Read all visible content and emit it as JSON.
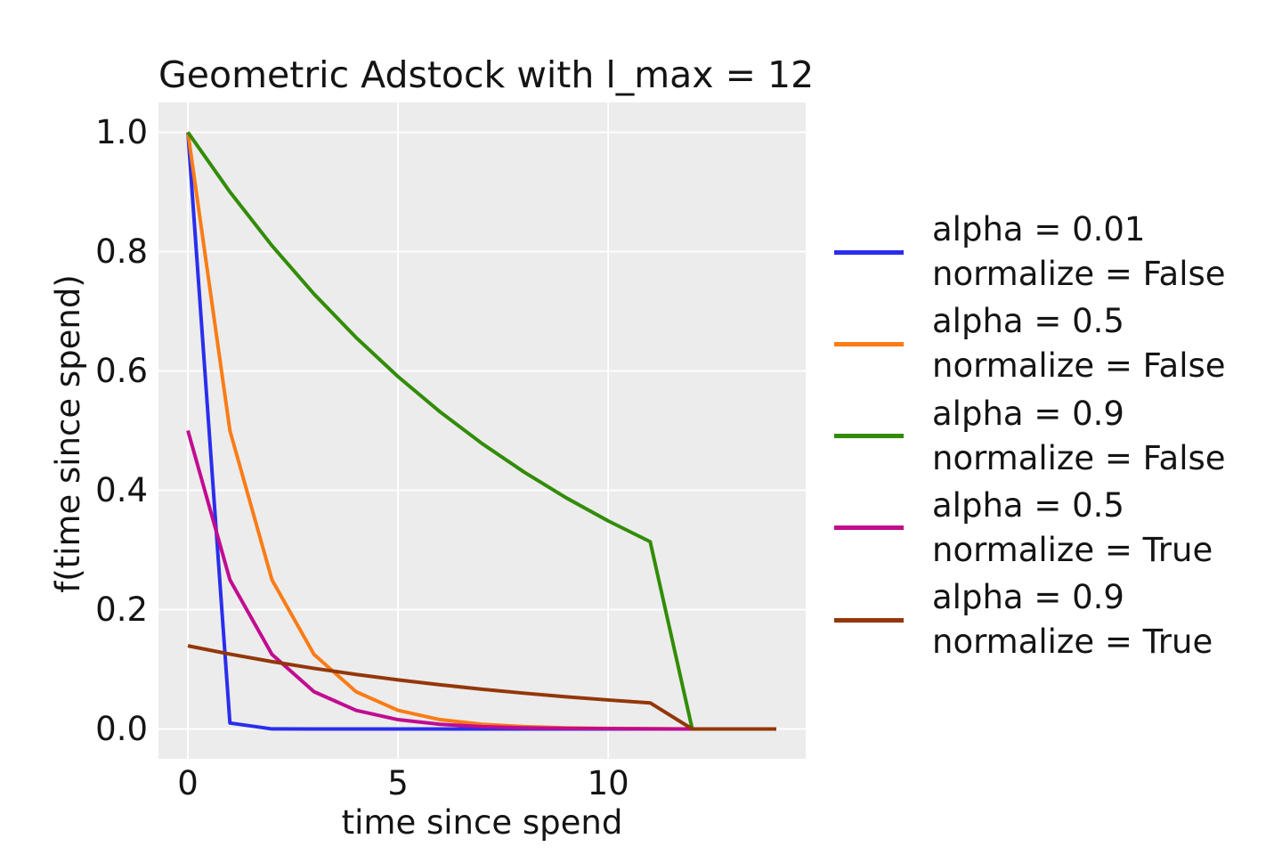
{
  "chart_data": {
    "type": "line",
    "title": "Geometric Adstock with l_max = 12",
    "xlabel": "time since spend",
    "ylabel": "f(time since spend)",
    "grid": true,
    "legend_position": "right of axes, no frame",
    "plot_bg_color": "#ececec",
    "grid_color": "#ffffff",
    "text_color": "#141414",
    "xlim": [
      -0.7,
      14.7
    ],
    "ylim": [
      -0.05,
      1.05
    ],
    "xticks": [
      {
        "v": 0,
        "label": "0"
      },
      {
        "v": 5,
        "label": "5"
      },
      {
        "v": 10,
        "label": "10"
      }
    ],
    "yticks": [
      {
        "v": 0.0,
        "label": "0.0"
      },
      {
        "v": 0.2,
        "label": "0.2"
      },
      {
        "v": 0.4,
        "label": "0.4"
      },
      {
        "v": 0.6,
        "label": "0.6"
      },
      {
        "v": 0.8,
        "label": "0.8"
      },
      {
        "v": 1.0,
        "label": "1.0"
      }
    ],
    "x": [
      0,
      1,
      2,
      3,
      4,
      5,
      6,
      7,
      8,
      9,
      10,
      11,
      12,
      13,
      14
    ],
    "series": [
      {
        "name": "alpha = 0.01\nnormalize = False",
        "color": "#2a2eec",
        "values": [
          1,
          0.01,
          0.0001,
          1e-06,
          0,
          0,
          0,
          0,
          0,
          0,
          0,
          0,
          0,
          0,
          0
        ]
      },
      {
        "name": "alpha = 0.5\nnormalize = False",
        "color": "#fa7c17",
        "values": [
          1,
          0.5,
          0.25,
          0.125,
          0.0625,
          0.03125,
          0.015625,
          0.007813,
          0.003906,
          0.001953,
          0.000977,
          0.000488,
          0,
          0,
          0
        ]
      },
      {
        "name": "alpha = 0.9\nnormalize = False",
        "color": "#328c06",
        "values": [
          1,
          0.9,
          0.81,
          0.729,
          0.6561,
          0.59049,
          0.531441,
          0.478297,
          0.430467,
          0.38742,
          0.348678,
          0.313811,
          0,
          0,
          0
        ]
      },
      {
        "name": "alpha = 0.5\nnormalize = True",
        "color": "#c10c90",
        "values": [
          0.500122,
          0.250061,
          0.125031,
          0.062515,
          0.031258,
          0.015629,
          0.007814,
          0.003907,
          0.001954,
          0.000977,
          0.000488,
          0.000244,
          0,
          0,
          0
        ]
      },
      {
        "name": "alpha = 0.9\nnormalize = True",
        "color": "#933708",
        "values": [
          0.139358,
          0.125422,
          0.11288,
          0.101592,
          0.091433,
          0.08229,
          0.074061,
          0.066655,
          0.059989,
          0.05399,
          0.048591,
          0.043732,
          0,
          0,
          0
        ]
      }
    ]
  }
}
